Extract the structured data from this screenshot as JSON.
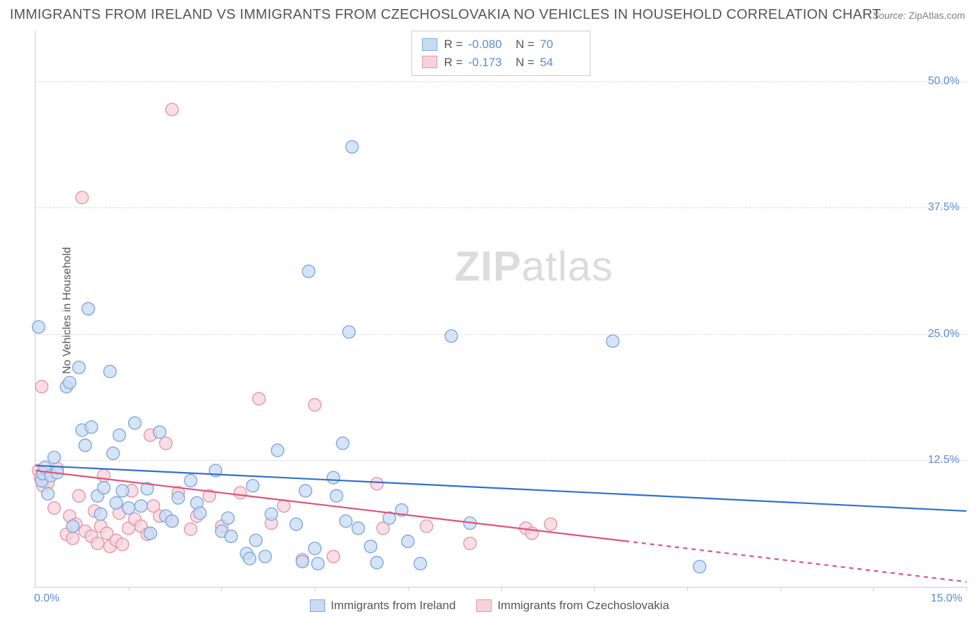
{
  "title": "IMMIGRANTS FROM IRELAND VS IMMIGRANTS FROM CZECHOSLOVAKIA NO VEHICLES IN HOUSEHOLD CORRELATION CHART",
  "source_label": "Source:",
  "source_value": "ZipAtlas.com",
  "ylabel": "No Vehicles in Household",
  "watermark": "ZIPatlas",
  "chart": {
    "type": "scatter",
    "xlim": [
      0,
      15
    ],
    "ylim": [
      0,
      55
    ],
    "xticks_pct": [
      0,
      10,
      20,
      30,
      40,
      50,
      60,
      70,
      80,
      90,
      100
    ],
    "ytick_labels": [
      {
        "y": 12.5,
        "label": "12.5%"
      },
      {
        "y": 25.0,
        "label": "25.0%"
      },
      {
        "y": 37.5,
        "label": "37.5%"
      },
      {
        "y": 50.0,
        "label": "50.0%"
      }
    ],
    "x_origin_label": "0.0%",
    "x_max_label": "15.0%",
    "background_color": "#ffffff",
    "grid_color": "#d8d8d8",
    "marker_radius": 9,
    "marker_stroke_width": 1.4,
    "trend_line_width": 2.2
  },
  "series": [
    {
      "name": "Immigrants from Ireland",
      "fill": "#c9dbf3",
      "stroke": "#7aa8e0",
      "line_color": "#2f6fd0",
      "R_label": "R =",
      "R": "-0.080",
      "N_label": "N =",
      "N": "70",
      "trend": {
        "x1": 0,
        "y1": 12.0,
        "x2": 15,
        "y2": 7.5,
        "dash_from_x": 15
      },
      "points": [
        [
          0.05,
          25.7
        ],
        [
          0.1,
          10.5
        ],
        [
          0.12,
          11.2
        ],
        [
          0.15,
          11.8
        ],
        [
          0.2,
          9.2
        ],
        [
          0.25,
          11.0
        ],
        [
          0.3,
          12.8
        ],
        [
          0.35,
          11.3
        ],
        [
          0.5,
          19.8
        ],
        [
          0.55,
          20.2
        ],
        [
          0.6,
          6.0
        ],
        [
          0.7,
          21.7
        ],
        [
          0.75,
          15.5
        ],
        [
          0.8,
          14.0
        ],
        [
          0.85,
          27.5
        ],
        [
          0.9,
          15.8
        ],
        [
          1.0,
          9.0
        ],
        [
          1.05,
          7.2
        ],
        [
          1.1,
          9.8
        ],
        [
          1.2,
          21.3
        ],
        [
          1.25,
          13.2
        ],
        [
          1.3,
          8.3
        ],
        [
          1.35,
          15.0
        ],
        [
          1.4,
          9.5
        ],
        [
          1.5,
          7.8
        ],
        [
          1.6,
          16.2
        ],
        [
          1.7,
          8.0
        ],
        [
          1.8,
          9.7
        ],
        [
          1.85,
          5.3
        ],
        [
          2.0,
          15.3
        ],
        [
          2.1,
          7.0
        ],
        [
          2.2,
          6.5
        ],
        [
          2.3,
          8.8
        ],
        [
          2.5,
          10.5
        ],
        [
          2.6,
          8.3
        ],
        [
          2.65,
          7.3
        ],
        [
          2.9,
          11.5
        ],
        [
          3.0,
          5.5
        ],
        [
          3.1,
          6.8
        ],
        [
          3.15,
          5.0
        ],
        [
          3.4,
          3.3
        ],
        [
          3.45,
          2.8
        ],
        [
          3.5,
          10.0
        ],
        [
          3.55,
          4.6
        ],
        [
          3.7,
          3.0
        ],
        [
          3.8,
          7.2
        ],
        [
          3.9,
          13.5
        ],
        [
          4.2,
          6.2
        ],
        [
          4.3,
          2.5
        ],
        [
          4.35,
          9.5
        ],
        [
          4.4,
          31.2
        ],
        [
          4.5,
          3.8
        ],
        [
          4.55,
          2.3
        ],
        [
          4.8,
          10.8
        ],
        [
          4.85,
          9.0
        ],
        [
          4.95,
          14.2
        ],
        [
          5.0,
          6.5
        ],
        [
          5.05,
          25.2
        ],
        [
          5.1,
          43.5
        ],
        [
          5.2,
          5.8
        ],
        [
          5.5,
          2.4
        ],
        [
          5.7,
          6.8
        ],
        [
          5.9,
          7.6
        ],
        [
          6.0,
          4.5
        ],
        [
          6.2,
          2.3
        ],
        [
          6.7,
          24.8
        ],
        [
          7.0,
          6.3
        ],
        [
          9.3,
          24.3
        ],
        [
          10.7,
          2.0
        ],
        [
          5.4,
          4.0
        ]
      ]
    },
    {
      "name": "Immigrants from Czechoslovakia",
      "fill": "#f6d3dc",
      "stroke": "#e694ab",
      "line_color": "#e05078",
      "R_label": "R =",
      "R": "-0.173",
      "N_label": "N =",
      "N": "54",
      "trend": {
        "x1": 0,
        "y1": 11.5,
        "x2": 15,
        "y2": 0.5,
        "dash_from_x": 9.5
      },
      "points": [
        [
          0.05,
          11.5
        ],
        [
          0.08,
          10.8
        ],
        [
          0.1,
          19.8
        ],
        [
          0.12,
          10.0
        ],
        [
          0.2,
          10.3
        ],
        [
          0.3,
          7.8
        ],
        [
          0.35,
          11.7
        ],
        [
          0.5,
          5.2
        ],
        [
          0.55,
          7.0
        ],
        [
          0.6,
          4.8
        ],
        [
          0.65,
          6.2
        ],
        [
          0.7,
          9.0
        ],
        [
          0.75,
          38.5
        ],
        [
          0.8,
          5.5
        ],
        [
          0.9,
          5.0
        ],
        [
          0.95,
          7.5
        ],
        [
          1.0,
          4.3
        ],
        [
          1.05,
          6.0
        ],
        [
          1.1,
          11.0
        ],
        [
          1.15,
          5.3
        ],
        [
          1.2,
          4.0
        ],
        [
          1.3,
          4.6
        ],
        [
          1.35,
          7.3
        ],
        [
          1.4,
          4.2
        ],
        [
          1.5,
          5.8
        ],
        [
          1.55,
          9.5
        ],
        [
          1.6,
          6.7
        ],
        [
          1.7,
          6.0
        ],
        [
          1.8,
          5.2
        ],
        [
          1.85,
          15.0
        ],
        [
          1.9,
          8.0
        ],
        [
          2.0,
          7.0
        ],
        [
          2.1,
          14.2
        ],
        [
          2.2,
          6.5
        ],
        [
          2.2,
          47.2
        ],
        [
          2.3,
          9.3
        ],
        [
          2.5,
          5.7
        ],
        [
          2.6,
          7.0
        ],
        [
          2.8,
          9.0
        ],
        [
          3.0,
          6.0
        ],
        [
          3.3,
          9.3
        ],
        [
          3.6,
          18.6
        ],
        [
          3.8,
          6.3
        ],
        [
          4.0,
          8.0
        ],
        [
          4.3,
          2.7
        ],
        [
          4.5,
          18.0
        ],
        [
          4.8,
          3.0
        ],
        [
          5.5,
          10.2
        ],
        [
          5.6,
          5.8
        ],
        [
          6.3,
          6.0
        ],
        [
          7.0,
          4.3
        ],
        [
          7.9,
          5.8
        ],
        [
          8.0,
          5.3
        ],
        [
          8.3,
          6.2
        ]
      ]
    }
  ]
}
